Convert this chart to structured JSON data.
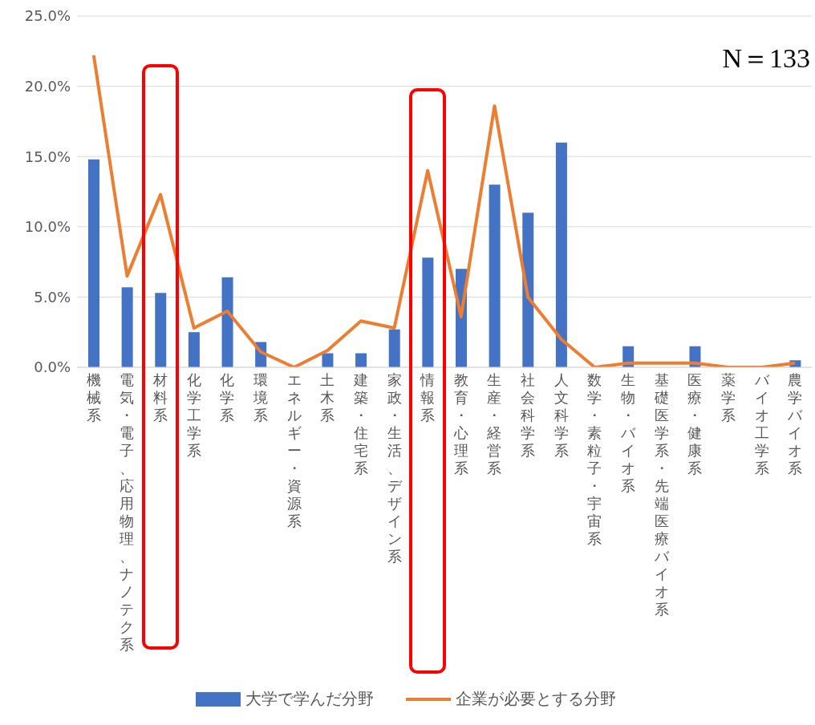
{
  "chart_data": {
    "type": "bar",
    "categories": [
      "機械系",
      "電気・電子、応用物理、ナノテク系",
      "材料系",
      "化学工学系",
      "化学系",
      "環境系",
      "エネルギー・資源系",
      "土木系",
      "建築・住宅系",
      "家政・生活、デザイン系",
      "情報系",
      "教育・心理系",
      "生産・経営系",
      "社会科学系",
      "人文科学系",
      "数学・素粒子・宇宙系",
      "生物・バイオ系",
      "基礎医学系・先端医療バイオ系",
      "医療・健康系",
      "薬学系",
      "バイオ工学系",
      "農学バイオ系"
    ],
    "series": [
      {
        "name": "大学で学んだ分野",
        "color": "#4472c4",
        "values": [
          14.8,
          5.7,
          5.3,
          2.5,
          6.4,
          1.8,
          0,
          1.0,
          1.0,
          2.7,
          7.8,
          7.0,
          13.0,
          11.0,
          16.0,
          0,
          1.5,
          0,
          1.5,
          0,
          0,
          0.5
        ]
      },
      {
        "name": "企業が必要とする分野",
        "type": "line",
        "color": "#ed7d31",
        "values": [
          22.2,
          6.5,
          12.3,
          2.8,
          4.0,
          1.1,
          0,
          1.2,
          3.3,
          2.8,
          14.0,
          3.6,
          18.6,
          5.0,
          2.0,
          0,
          0.3,
          0.3,
          0.3,
          0,
          0,
          0.3
        ]
      }
    ],
    "ylim": [
      0,
      25
    ],
    "yticks": [
      {
        "value": 0,
        "label": "0.0%"
      },
      {
        "value": 5,
        "label": "5.0%"
      },
      {
        "value": 10,
        "label": "10.0%"
      },
      {
        "value": 15,
        "label": "15.0%"
      },
      {
        "value": 20,
        "label": "20.0%"
      },
      {
        "value": 25,
        "label": "25.0%"
      }
    ],
    "grid": "y",
    "legend": "bottom",
    "marker": "none",
    "line_style": "solid",
    "annotations": [
      "N＝133"
    ]
  }
}
